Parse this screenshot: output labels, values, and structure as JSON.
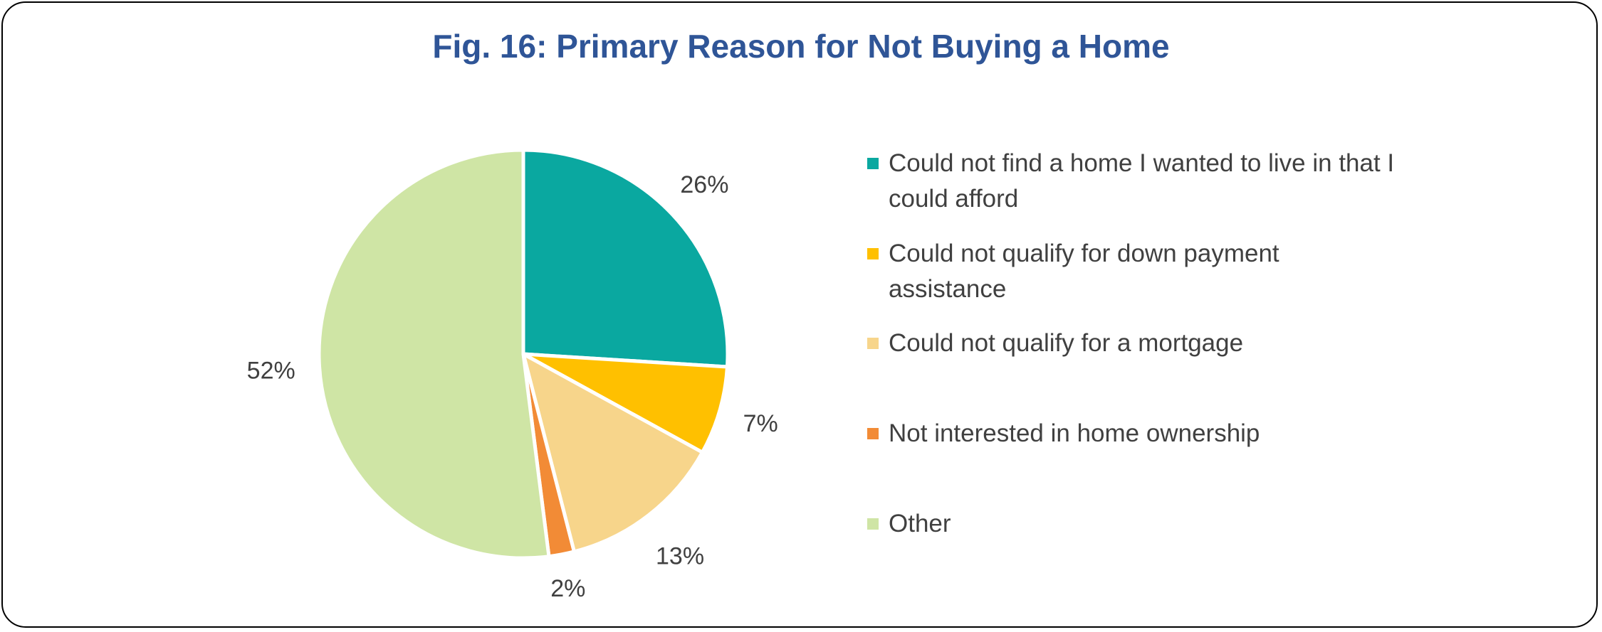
{
  "chart_data": {
    "type": "pie",
    "title": "Fig. 16: Primary Reason for Not Buying a Home",
    "legend_position": "right",
    "slices": [
      {
        "label": "Could not find a home I wanted to live in that I could afford",
        "value": 26,
        "display": "26%",
        "color": "#0aa8a0"
      },
      {
        "label": "Could not qualify for down payment assistance",
        "value": 7,
        "display": "7%",
        "color": "#ffc000"
      },
      {
        "label": "Could not qualify for a mortgage",
        "value": 13,
        "display": "13%",
        "color": "#f7d58b"
      },
      {
        "label": "Not interested in home ownership",
        "value": 2,
        "display": "2%",
        "color": "#f28b36"
      },
      {
        "label": "Other",
        "value": 52,
        "display": "52%",
        "color": "#cfe5a5"
      }
    ]
  }
}
